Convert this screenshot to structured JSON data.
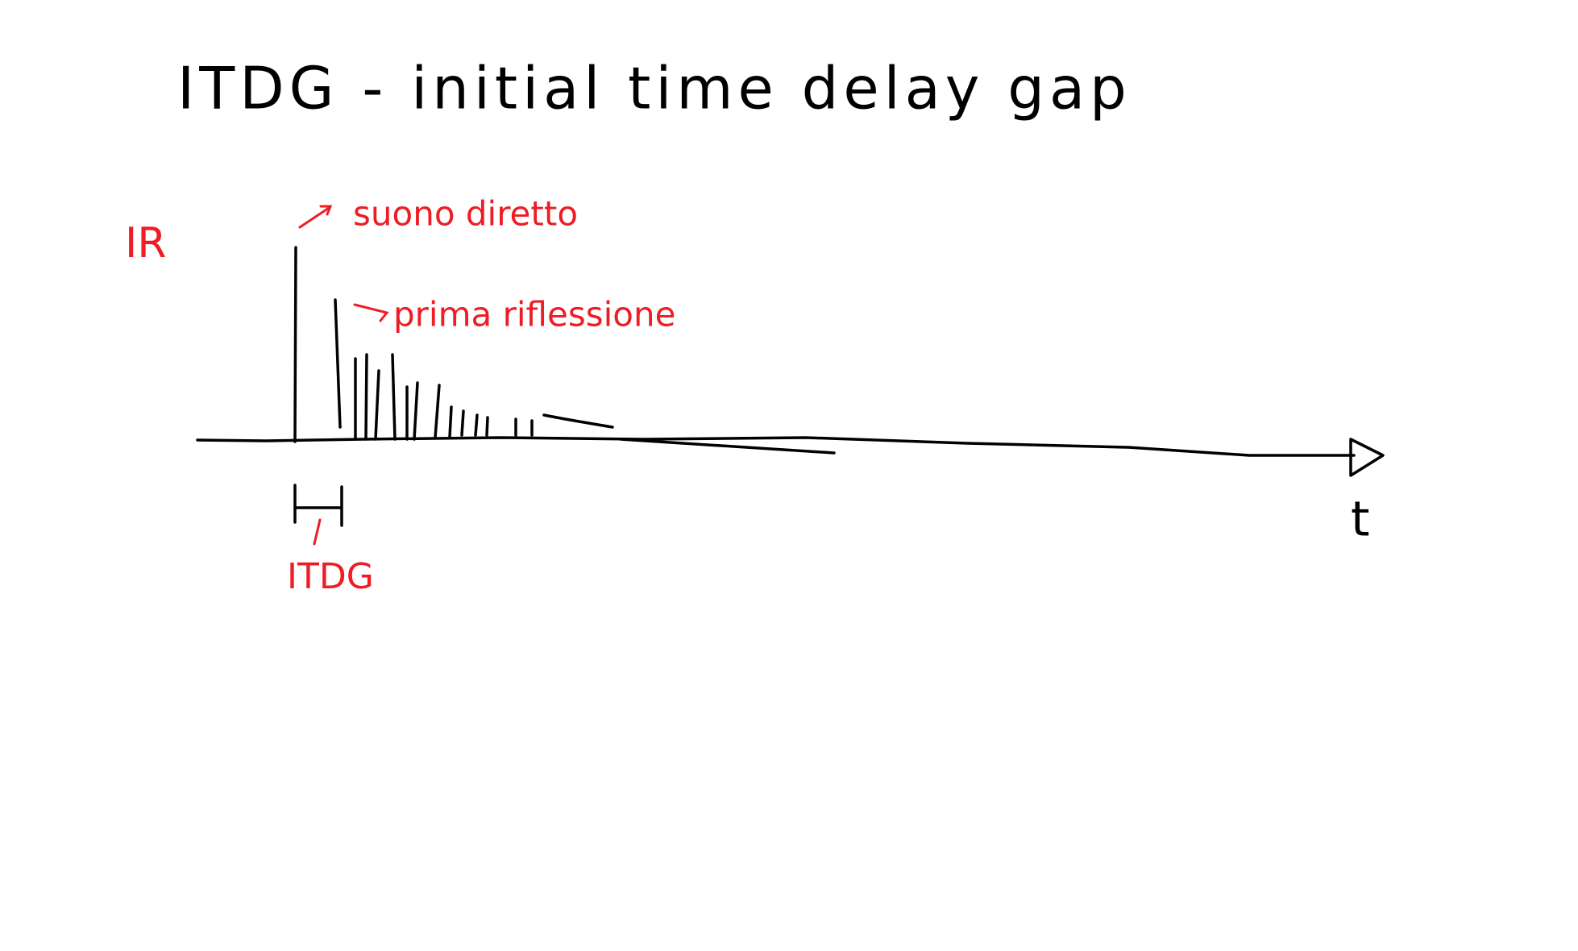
{
  "title": "ITDG - initial time delay gap",
  "y_axis_label": "IR",
  "x_axis_label": "t",
  "annotations": {
    "direct_sound": "suono diretto",
    "first_reflection": "prima riflessione",
    "gap": "ITDG"
  }
}
